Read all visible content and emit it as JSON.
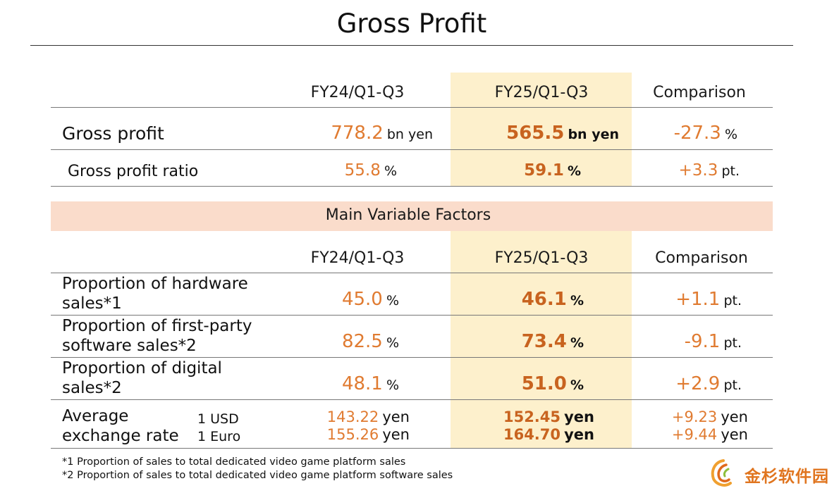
{
  "title": "Gross Profit",
  "colors": {
    "accent": "#e07b31",
    "highlight": "#fdf0cc",
    "band": "#fadccb"
  },
  "top_table": {
    "headers": [
      "FY24/Q1-Q3",
      "FY25/Q1-Q3",
      "Comparison"
    ],
    "rows": [
      {
        "label": "Gross profit",
        "fy24": "778.2",
        "fy24_unit": "bn yen",
        "fy25": "565.5",
        "fy25_unit": "bn yen",
        "cmp": "-27.3",
        "cmp_unit": "%"
      },
      {
        "label": "Gross profit ratio",
        "fy24": "55.8",
        "fy24_unit": "%",
        "fy25": "59.1",
        "fy25_unit": "%",
        "cmp": "+3.3",
        "cmp_unit": "pt."
      }
    ]
  },
  "factors": {
    "band_title": "Main Variable Factors",
    "headers": [
      "FY24/Q1-Q3",
      "FY25/Q1-Q3",
      "Comparison"
    ],
    "rows": [
      {
        "label_1": "Proportion of hardware",
        "label_2": "sales*1",
        "fy24": "45.0",
        "fy24_unit": "%",
        "fy25": "46.1",
        "fy25_unit": "%",
        "cmp": "+1.1",
        "cmp_unit": "pt."
      },
      {
        "label_1": "Proportion of first-party",
        "label_2": "software sales*2",
        "fy24": "82.5",
        "fy24_unit": "%",
        "fy25": "73.4",
        "fy25_unit": "%",
        "cmp": "-9.1",
        "cmp_unit": "pt."
      },
      {
        "label_1": "Proportion of digital",
        "label_2": "sales*2",
        "fy24": "48.1",
        "fy24_unit": "%",
        "fy25": "51.0",
        "fy25_unit": "%",
        "cmp": "+2.9",
        "cmp_unit": "pt."
      }
    ],
    "exchange": {
      "label_1": "Average",
      "label_2": "exchange rate",
      "lines": [
        {
          "currency": "1 USD",
          "fy24": "143.22",
          "fy25": "152.45",
          "cmp": "+9.23",
          "unit": "yen"
        },
        {
          "currency": "1 Euro",
          "fy24": "155.26",
          "fy25": "164.70",
          "cmp": "+9.44",
          "unit": "yen"
        }
      ]
    }
  },
  "footnotes": [
    "*1 Proportion of sales to total dedicated video game platform sales",
    "*2 Proportion of sales to total dedicated video game platform software sales"
  ],
  "logo": {
    "text": "金杉软件园",
    "icon": "swirl-logo-icon"
  }
}
